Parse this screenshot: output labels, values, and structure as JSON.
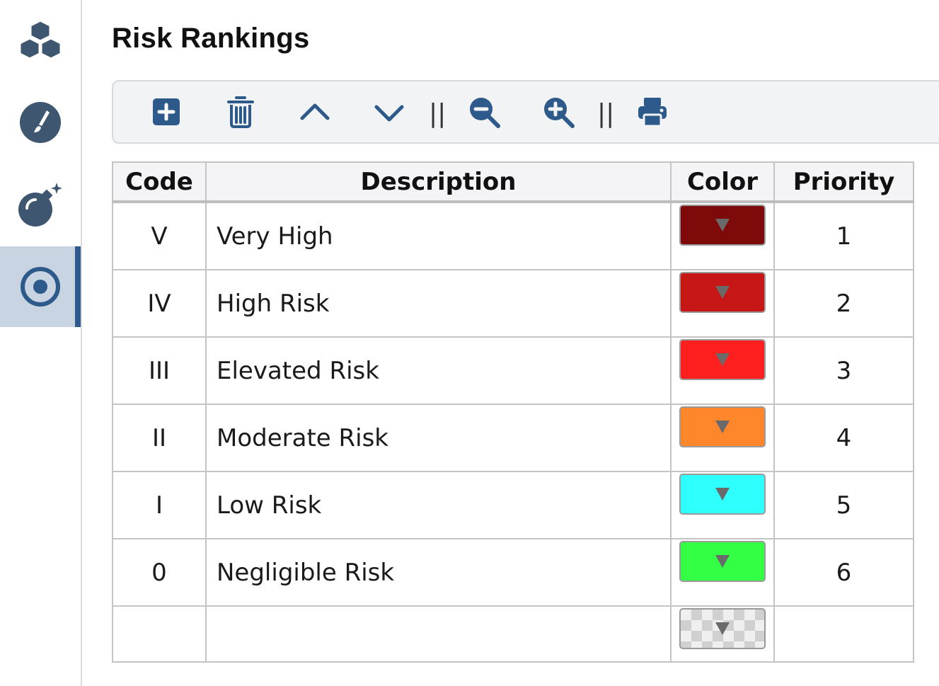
{
  "sidebar": {
    "items": [
      {
        "icon": "cubes-icon",
        "active": false
      },
      {
        "icon": "paint-brush-icon",
        "active": false
      },
      {
        "icon": "bomb-icon",
        "active": false
      },
      {
        "icon": "bullseye-icon",
        "active": true
      }
    ]
  },
  "page": {
    "title": "Risk Rankings"
  },
  "toolbar": {
    "buttons": [
      "add-icon",
      "trash-icon",
      "chevron-up-icon",
      "chevron-down-icon",
      "zoom-out-icon",
      "zoom-in-icon",
      "print-icon"
    ],
    "separator": "||"
  },
  "table": {
    "headers": {
      "code": "Code",
      "description": "Description",
      "color": "Color",
      "priority": "Priority"
    },
    "rows": [
      {
        "code": "V",
        "description": "Very High",
        "color": "#7e0a0a",
        "priority": "1"
      },
      {
        "code": "IV",
        "description": "High Risk",
        "color": "#c71616",
        "priority": "2"
      },
      {
        "code": "III",
        "description": "Elevated Risk",
        "color": "#ff1f1f",
        "priority": "3"
      },
      {
        "code": "II",
        "description": "Moderate Risk",
        "color": "#ff862b",
        "priority": "4"
      },
      {
        "code": "I",
        "description": "Low Risk",
        "color": "#2effff",
        "priority": "5"
      },
      {
        "code": "0",
        "description": "Negligible Risk",
        "color": "#33ff44",
        "priority": "6"
      },
      {
        "code": "",
        "description": "",
        "color": "transparent",
        "priority": ""
      }
    ]
  },
  "colors": {
    "accent": "#2d5a8a",
    "icon": "#3e5670",
    "toolbar_bg": "#f2f3f5"
  }
}
